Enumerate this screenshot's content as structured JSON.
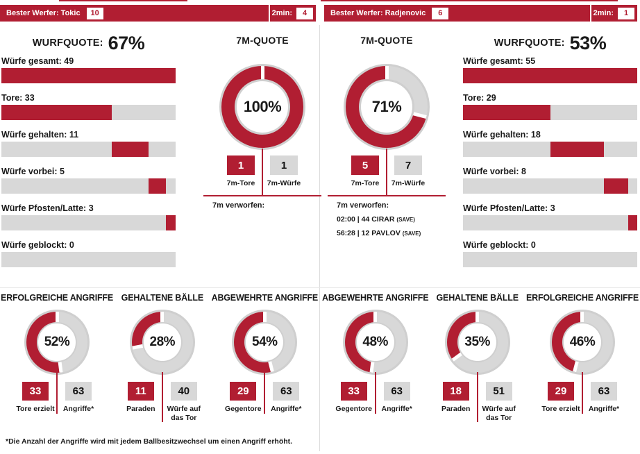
{
  "colors": {
    "red": "#B11E32",
    "track": "#D8D8D8",
    "ring": "#CFCFCF",
    "divider": "#DCDCDC"
  },
  "headers": {
    "left": {
      "best_label": "Bester Werfer: Tokic",
      "best_value": "10",
      "min2_label": "2min:",
      "min2_value": "4"
    },
    "right": {
      "best_label": "Bester Werfer: Radjenovic",
      "best_value": "6",
      "min2_label": "2min:",
      "min2_value": "1"
    }
  },
  "footnote": "*Die Anzahl der Angriffe wird mit jedem Ballbesitzwechsel um einen Angriff erhöht.",
  "chart_data": [
    {
      "id": "left-shots",
      "type": "bar",
      "title_label": "WURFQUOTE:",
      "title_value": "67%",
      "rows": [
        {
          "label": "Würfe gesamt: 49",
          "value": 49
        },
        {
          "label": "Tore: 33",
          "value": 33
        },
        {
          "label": "Würfe gehalten: 11",
          "value": 11
        },
        {
          "label": "Würfe vorbei: 5",
          "value": 5
        },
        {
          "label": "Würfe Pfosten/Latte: 3",
          "value": 3
        },
        {
          "label": "Würfe geblockt: 0",
          "value": 0
        }
      ]
    },
    {
      "id": "left-7m",
      "type": "pie",
      "title": "7M-QUOTE",
      "percent": 100,
      "percent_label": "100%",
      "boxes": {
        "red_value": "1",
        "red_label": "7m-Tore",
        "gray_value": "1",
        "gray_label": "7m-Würfe"
      },
      "verworfen_label": "7m verworfen:",
      "verworfen_entries": []
    },
    {
      "id": "right-7m",
      "type": "pie",
      "title": "7M-QUOTE",
      "percent": 71,
      "percent_label": "71%",
      "boxes": {
        "red_value": "5",
        "red_label": "7m-Tore",
        "gray_value": "7",
        "gray_label": "7m-Würfe"
      },
      "verworfen_label": "7m verworfen:",
      "verworfen_entries": [
        {
          "text": "02:00 | 44 CIRAR",
          "tag": "(SAVE)"
        },
        {
          "text": "56:28 | 12 PAVLOV",
          "tag": "(SAVE)"
        }
      ]
    },
    {
      "id": "right-shots",
      "type": "bar",
      "title_label": "WURFQUOTE:",
      "title_value": "53%",
      "rows": [
        {
          "label": "Würfe gesamt: 55",
          "value": 55
        },
        {
          "label": "Tore: 29",
          "value": 29
        },
        {
          "label": "Würfe gehalten: 18",
          "value": 18
        },
        {
          "label": "Würfe vorbei: 8",
          "value": 8
        },
        {
          "label": "Würfe Pfosten/Latte: 3",
          "value": 3
        },
        {
          "label": "Würfe geblockt: 0",
          "value": 0
        }
      ]
    },
    {
      "id": "attack-left",
      "type": "pie",
      "title": "ERFOLGREICHE ANGRIFFE",
      "percent": 52,
      "percent_label": "52%",
      "boxes": {
        "red_value": "33",
        "red_label": "Tore erzielt",
        "gray_value": "63",
        "gray_label": "Angriffe*"
      }
    },
    {
      "id": "saves-left",
      "type": "pie",
      "title": "GEHALTENE BÄLLE",
      "percent": 28,
      "percent_label": "28%",
      "boxes": {
        "red_value": "11",
        "red_label": "Paraden",
        "gray_value": "40",
        "gray_label": "Würfe auf das Tor"
      }
    },
    {
      "id": "defense-left",
      "type": "pie",
      "title": "ABGEWEHRTE ANGRIFFE",
      "percent": 54,
      "percent_label": "54%",
      "boxes": {
        "red_value": "29",
        "red_label": "Gegentore",
        "gray_value": "63",
        "gray_label": "Angriffe*"
      }
    },
    {
      "id": "defense-right",
      "type": "pie",
      "title": "ABGEWEHRTE ANGRIFFE",
      "percent": 48,
      "percent_label": "48%",
      "boxes": {
        "red_value": "33",
        "red_label": "Gegentore",
        "gray_value": "63",
        "gray_label": "Angriffe*"
      }
    },
    {
      "id": "saves-right",
      "type": "pie",
      "title": "GEHALTENE BÄLLE",
      "percent": 35,
      "percent_label": "35%",
      "boxes": {
        "red_value": "18",
        "red_label": "Paraden",
        "gray_value": "51",
        "gray_label": "Würfe auf das Tor"
      }
    },
    {
      "id": "attack-right",
      "type": "pie",
      "title": "ERFOLGREICHE ANGRIFFE",
      "percent": 46,
      "percent_label": "46%",
      "boxes": {
        "red_value": "29",
        "red_label": "Tore erzielt",
        "gray_value": "63",
        "gray_label": "Angriffe*"
      }
    }
  ]
}
